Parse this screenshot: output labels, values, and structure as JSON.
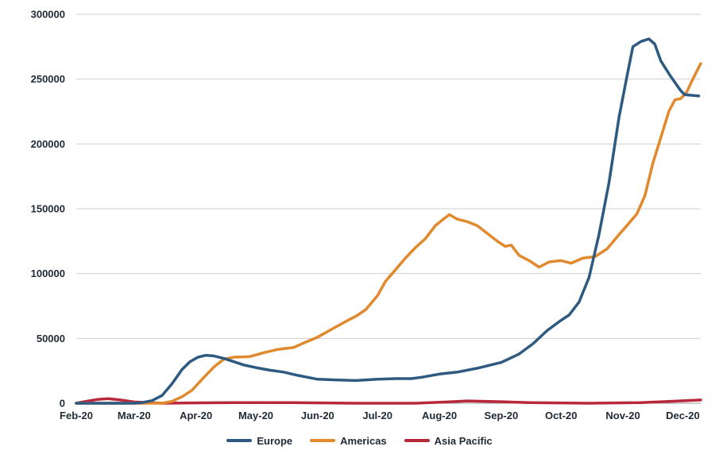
{
  "chart_data": {
    "type": "line",
    "title": "",
    "xlabel": "",
    "ylabel": "",
    "grid": true,
    "legend_position": "bottom",
    "ylim": [
      0,
      300000
    ],
    "yticks": [
      "0",
      "50000",
      "100000",
      "150000",
      "200000",
      "250000",
      "300000"
    ],
    "xticks": [
      "Feb-20",
      "Mar-20",
      "Apr-20",
      "May-20",
      "Jun-20",
      "Jul-20",
      "Aug-20",
      "Sep-20",
      "Oct-20",
      "Nov-20",
      "Dec-20"
    ],
    "xtick_dates": [
      "2020-02-01",
      "2020-03-01",
      "2020-04-01",
      "2020-05-01",
      "2020-06-01",
      "2020-07-01",
      "2020-08-01",
      "2020-09-01",
      "2020-10-01",
      "2020-11-01",
      "2020-12-01"
    ],
    "x_range": [
      "2020-02-01",
      "2020-12-10"
    ],
    "series": [
      {
        "name": "Europe",
        "color": "#2e5a82",
        "points": [
          [
            "2020-02-01",
            0
          ],
          [
            "2020-03-01",
            0
          ],
          [
            "2020-03-05",
            500
          ],
          [
            "2020-03-10",
            2000
          ],
          [
            "2020-03-15",
            6000
          ],
          [
            "2020-03-20",
            15000
          ],
          [
            "2020-03-25",
            26000
          ],
          [
            "2020-03-29",
            32000
          ],
          [
            "2020-04-02",
            35500
          ],
          [
            "2020-04-06",
            37000
          ],
          [
            "2020-04-10",
            36500
          ],
          [
            "2020-04-15",
            34500
          ],
          [
            "2020-04-20",
            32000
          ],
          [
            "2020-04-25",
            29500
          ],
          [
            "2020-05-01",
            27500
          ],
          [
            "2020-05-08",
            25500
          ],
          [
            "2020-05-15",
            24000
          ],
          [
            "2020-05-22",
            21500
          ],
          [
            "2020-06-01",
            18500
          ],
          [
            "2020-06-10",
            18000
          ],
          [
            "2020-06-20",
            17500
          ],
          [
            "2020-07-01",
            18500
          ],
          [
            "2020-07-10",
            19000
          ],
          [
            "2020-07-18",
            19000
          ],
          [
            "2020-07-23",
            20000
          ],
          [
            "2020-08-01",
            22500
          ],
          [
            "2020-08-10",
            24000
          ],
          [
            "2020-08-20",
            27000
          ],
          [
            "2020-09-01",
            31500
          ],
          [
            "2020-09-10",
            38000
          ],
          [
            "2020-09-17",
            46000
          ],
          [
            "2020-09-24",
            56000
          ],
          [
            "2020-10-01",
            64000
          ],
          [
            "2020-10-05",
            68000
          ],
          [
            "2020-10-10",
            78000
          ],
          [
            "2020-10-15",
            97000
          ],
          [
            "2020-10-20",
            130000
          ],
          [
            "2020-10-25",
            170000
          ],
          [
            "2020-10-30",
            220000
          ],
          [
            "2020-11-03",
            252000
          ],
          [
            "2020-11-06",
            275000
          ],
          [
            "2020-11-10",
            279000
          ],
          [
            "2020-11-14",
            281000
          ],
          [
            "2020-11-17",
            277000
          ],
          [
            "2020-11-20",
            264000
          ],
          [
            "2020-11-25",
            252000
          ],
          [
            "2020-11-30",
            241000
          ],
          [
            "2020-12-02",
            238000
          ],
          [
            "2020-12-09",
            237000
          ]
        ]
      },
      {
        "name": "Americas",
        "color": "#e08a2d",
        "points": [
          [
            "2020-02-01",
            0
          ],
          [
            "2020-03-15",
            0
          ],
          [
            "2020-03-20",
            1500
          ],
          [
            "2020-03-25",
            5000
          ],
          [
            "2020-03-30",
            10000
          ],
          [
            "2020-04-05",
            20000
          ],
          [
            "2020-04-10",
            28000
          ],
          [
            "2020-04-15",
            34000
          ],
          [
            "2020-04-20",
            35500
          ],
          [
            "2020-04-28",
            36000
          ],
          [
            "2020-05-05",
            39000
          ],
          [
            "2020-05-12",
            41500
          ],
          [
            "2020-05-20",
            43000
          ],
          [
            "2020-05-25",
            46500
          ],
          [
            "2020-06-01",
            51000
          ],
          [
            "2020-06-08",
            57000
          ],
          [
            "2020-06-15",
            63000
          ],
          [
            "2020-06-20",
            67000
          ],
          [
            "2020-06-25",
            72000
          ],
          [
            "2020-07-01",
            83000
          ],
          [
            "2020-07-05",
            94000
          ],
          [
            "2020-07-10",
            103000
          ],
          [
            "2020-07-15",
            112000
          ],
          [
            "2020-07-20",
            120000
          ],
          [
            "2020-07-25",
            127000
          ],
          [
            "2020-07-30",
            137000
          ],
          [
            "2020-08-03",
            142000
          ],
          [
            "2020-08-06",
            145500
          ],
          [
            "2020-08-10",
            142000
          ],
          [
            "2020-08-15",
            140000
          ],
          [
            "2020-08-20",
            137000
          ],
          [
            "2020-08-25",
            131000
          ],
          [
            "2020-08-30",
            125000
          ],
          [
            "2020-09-03",
            121000
          ],
          [
            "2020-09-06",
            122000
          ],
          [
            "2020-09-10",
            114000
          ],
          [
            "2020-09-15",
            110000
          ],
          [
            "2020-09-20",
            105000
          ],
          [
            "2020-09-25",
            109000
          ],
          [
            "2020-10-01",
            110000
          ],
          [
            "2020-10-06",
            108000
          ],
          [
            "2020-10-12",
            112000
          ],
          [
            "2020-10-18",
            113000
          ],
          [
            "2020-10-24",
            119000
          ],
          [
            "2020-10-30",
            130000
          ],
          [
            "2020-11-03",
            137000
          ],
          [
            "2020-11-08",
            146000
          ],
          [
            "2020-11-12",
            160000
          ],
          [
            "2020-11-16",
            185000
          ],
          [
            "2020-11-20",
            205000
          ],
          [
            "2020-11-24",
            225000
          ],
          [
            "2020-11-27",
            234000
          ],
          [
            "2020-11-30",
            235000
          ],
          [
            "2020-12-03",
            240000
          ],
          [
            "2020-12-06",
            250000
          ],
          [
            "2020-12-10",
            262000
          ]
        ]
      },
      {
        "name": "Asia Pacific",
        "color": "#b8283a",
        "points": [
          [
            "2020-02-01",
            0
          ],
          [
            "2020-02-06",
            1500
          ],
          [
            "2020-02-12",
            3000
          ],
          [
            "2020-02-17",
            3500
          ],
          [
            "2020-02-23",
            2500
          ],
          [
            "2020-03-01",
            1000
          ],
          [
            "2020-03-15",
            0
          ],
          [
            "2020-04-20",
            500
          ],
          [
            "2020-05-20",
            500
          ],
          [
            "2020-06-20",
            0
          ],
          [
            "2020-07-20",
            0
          ],
          [
            "2020-08-05",
            1000
          ],
          [
            "2020-08-15",
            1800
          ],
          [
            "2020-08-30",
            1200
          ],
          [
            "2020-09-15",
            500
          ],
          [
            "2020-10-15",
            0
          ],
          [
            "2020-11-10",
            500
          ],
          [
            "2020-11-25",
            1500
          ],
          [
            "2020-12-10",
            2500
          ]
        ]
      }
    ]
  }
}
